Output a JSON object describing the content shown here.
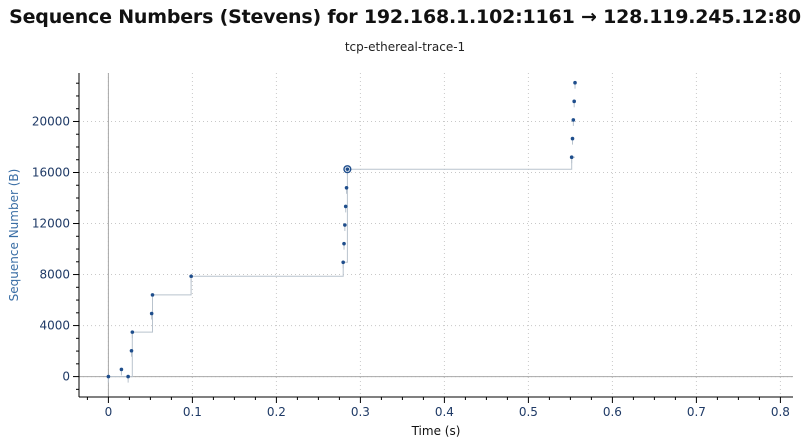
{
  "window": {
    "title": "Sequence Numbers (Stevens) for 192.168.1.102:1161 → 128.119.245.12:80",
    "subtitle": "tcp-ethereal-trace-1"
  },
  "colors": {
    "point": "#1f4e8c",
    "step_line": "#b9c3cd",
    "axis": "#000000",
    "grid": "#c8c8c8",
    "ylabel": "#3a6ea5",
    "tick_text": "#1f3a66"
  },
  "chart_data": {
    "type": "scatter",
    "title": "Sequence Numbers (Stevens) for 192.168.1.102:1161 → 128.119.245.12:80",
    "subtitle": "tcp-ethereal-trace-1",
    "xlabel": "Time (s)",
    "ylabel": "Sequence Number (B)",
    "xlim": [
      -0.035,
      0.815
    ],
    "ylim": [
      -1600,
      23800
    ],
    "xticks": [
      0,
      0.1,
      0.2,
      0.3,
      0.4,
      0.5,
      0.6,
      0.7,
      0.8
    ],
    "xtick_labels": [
      "0",
      "0.1",
      "0.2",
      "0.3",
      "0.4",
      "0.5",
      "0.6",
      "0.7",
      "0.8"
    ],
    "yticks": [
      0,
      4000,
      8000,
      12000,
      16000,
      20000
    ],
    "ytick_labels": [
      "0",
      "4000",
      "8000",
      "12000",
      "16000",
      "20000"
    ],
    "grid": true,
    "series": [
      {
        "x": [
          0.0,
          0.0155,
          0.0235,
          0.0275,
          0.0285,
          0.0515,
          0.0525,
          0.0985,
          0.2795,
          0.2805,
          0.2815,
          0.2825,
          0.2835,
          0.2845,
          0.5515,
          0.5525,
          0.5535,
          0.5545,
          0.5555
        ],
        "y": [
          0,
          566,
          0,
          2026,
          3486,
          4946,
          6406,
          7866,
          8961,
          10421,
          11881,
          13341,
          14801,
          16261,
          17200,
          18660,
          20120,
          21580,
          23040
        ]
      }
    ],
    "step_line": {
      "x": [
        0.0,
        0.0235,
        0.0235,
        0.0285,
        0.0285,
        0.0525,
        0.0525,
        0.0985,
        0.0985,
        0.2795,
        0.2795,
        0.2845,
        0.2845,
        0.5515,
        0.5515,
        0.5555
      ],
      "y": [
        0,
        0,
        0,
        0,
        3486,
        3486,
        6406,
        6406,
        7866,
        7866,
        8961,
        8961,
        16261,
        16261,
        17200,
        17200
      ]
    },
    "highlight": {
      "x": 0.2845,
      "y": 16261
    }
  }
}
